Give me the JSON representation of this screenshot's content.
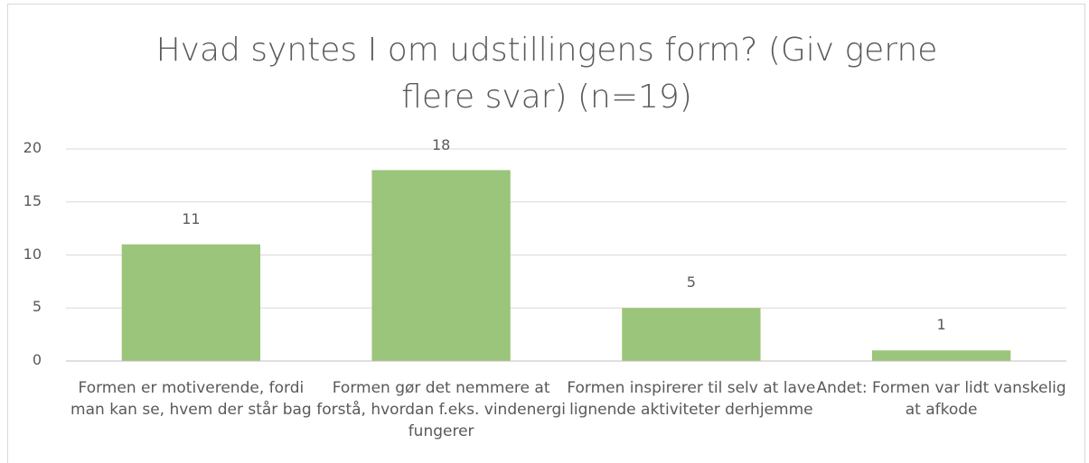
{
  "chart_data": {
    "type": "bar",
    "title": "Hvad syntes I om udstillingens form? (Giv gerne flere svar) (n=19)",
    "categories": [
      "Formen er motiverende, fordi man kan se, hvem der står bag",
      "Formen gør det nemmere at forstå, hvordan f.eks. vindenergi fungerer",
      "Formen inspirerer til selv at lave lignende aktiviteter derhjemme",
      "Andet:  Formen var lidt vanskelig at afkode"
    ],
    "values": [
      11,
      18,
      5,
      1
    ],
    "color": "#9bc57a",
    "ylim": [
      0,
      20
    ],
    "yticks": [
      0,
      5,
      10,
      15,
      20
    ],
    "grid": true
  }
}
